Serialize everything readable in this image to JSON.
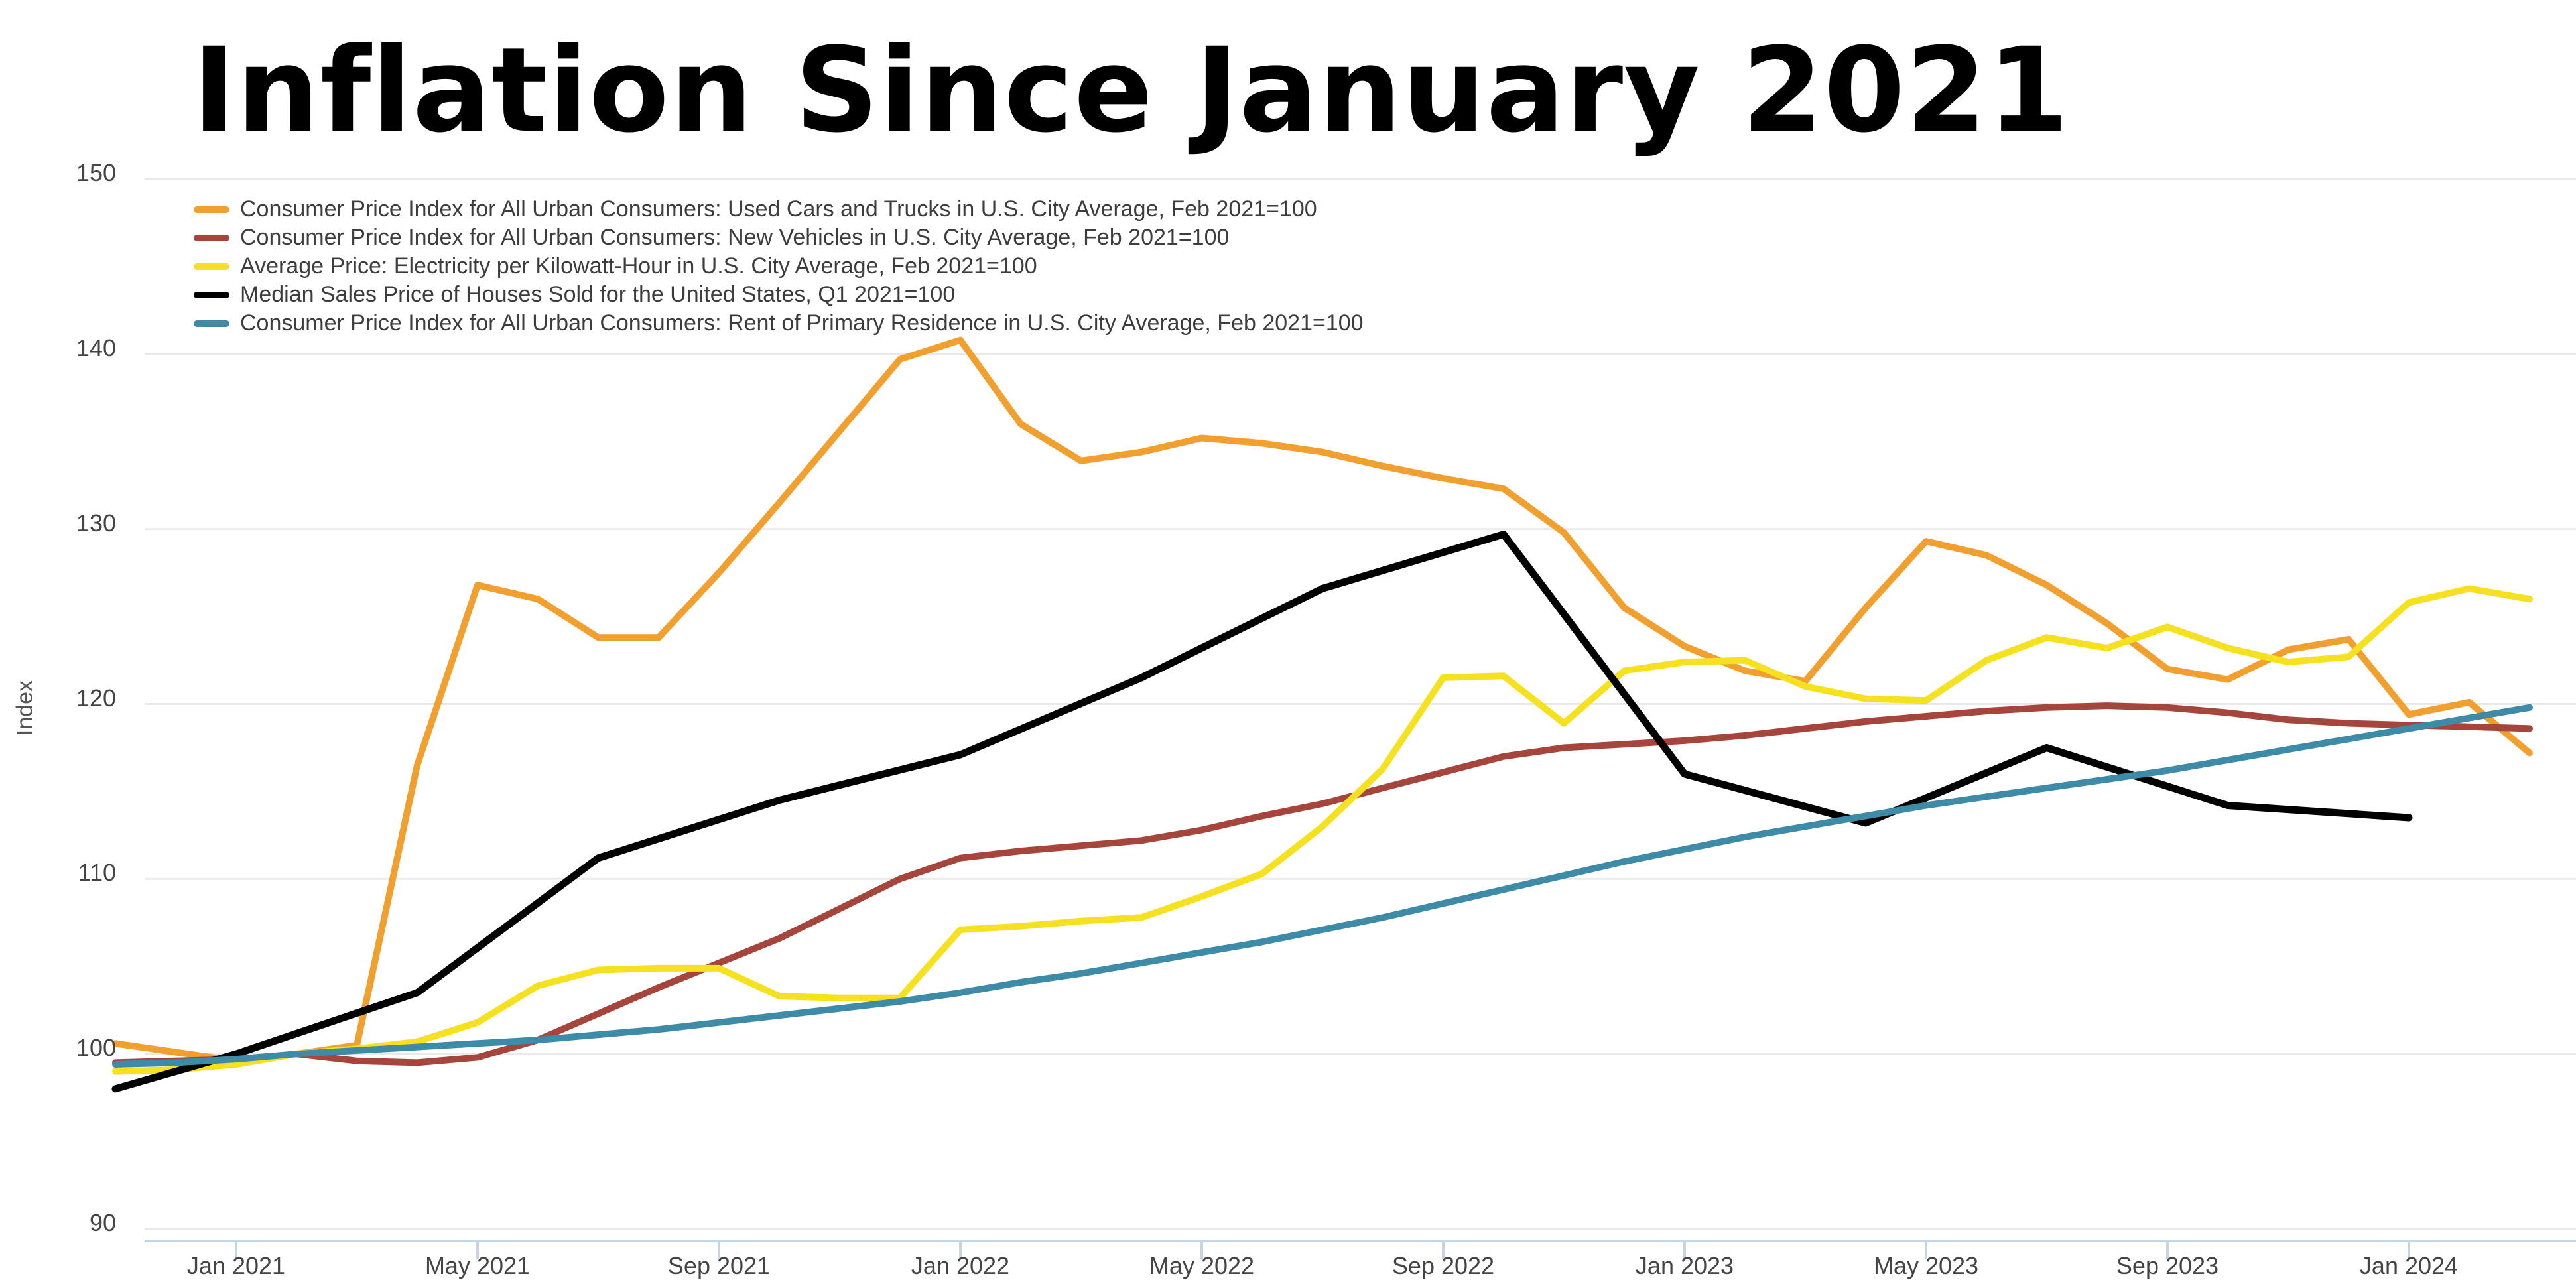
{
  "title": "Inflation Since January 2021",
  "y_axis": {
    "label": "Index",
    "ticks": [
      90,
      100,
      110,
      120,
      130,
      140,
      150
    ]
  },
  "x_axis": {
    "tick_labels": [
      "Jan 2021",
      "May 2021",
      "Sep 2021",
      "Jan 2022",
      "May 2022",
      "Sep 2022",
      "Jan 2023",
      "May 2023",
      "Sep 2023",
      "Jan 2024"
    ]
  },
  "colors": {
    "used_cars": "#F1A02F",
    "new_vehicles": "#A6453C",
    "electricity": "#F6E120",
    "houses": "#000000",
    "rent": "#3D8BA6",
    "gridline": "#E9E9E9",
    "axis_line": "#C5D5E6",
    "tick_text": "#444444",
    "legend_text": "#3D3D3D"
  },
  "legend": [
    {
      "label": "Consumer Price Index for All Urban Consumers: Used Cars and Trucks in U.S. City Average, Feb 2021=100",
      "series": "used_cars"
    },
    {
      "label": "Consumer Price Index for All Urban Consumers: New Vehicles in U.S. City Average, Feb 2021=100",
      "series": "new_vehicles"
    },
    {
      "label": "Average Price: Electricity per Kilowatt-Hour in U.S. City Average, Feb 2021=100",
      "series": "electricity"
    },
    {
      "label": "Median Sales Price of Houses Sold for the United States, Q1 2021=100",
      "series": "houses"
    },
    {
      "label": "Consumer Price Index for All Urban Consumers: Rent of Primary Residence in U.S. City Average, Feb 2021=100",
      "series": "rent"
    }
  ],
  "chart_data": {
    "type": "line",
    "title": "Inflation Since January 2021",
    "xlabel": "",
    "ylabel": "Index",
    "ylim": [
      90,
      150
    ],
    "grid": true,
    "legend_position": "top-left",
    "x": [
      "Nov 2020",
      "Dec 2020",
      "Jan 2021",
      "Feb 2021",
      "Mar 2021",
      "Apr 2021",
      "May 2021",
      "Jun 2021",
      "Jul 2021",
      "Aug 2021",
      "Sep 2021",
      "Oct 2021",
      "Nov 2021",
      "Dec 2021",
      "Jan 2022",
      "Feb 2022",
      "Mar 2022",
      "Apr 2022",
      "May 2022",
      "Jun 2022",
      "Jul 2022",
      "Aug 2022",
      "Sep 2022",
      "Oct 2022",
      "Nov 2022",
      "Dec 2022",
      "Jan 2023",
      "Feb 2023",
      "Mar 2023",
      "Apr 2023",
      "May 2023",
      "Jun 2023",
      "Jul 2023",
      "Aug 2023",
      "Sep 2023",
      "Oct 2023",
      "Nov 2023",
      "Dec 2023",
      "Jan 2024",
      "Feb 2024",
      "Mar 2024"
    ],
    "series": [
      {
        "name": "CPI Used Cars and Trucks, Feb 2021=100",
        "key": "used_cars",
        "frequency": "monthly",
        "values": [
          100.6,
          100.1,
          99.6,
          100.0,
          100.5,
          116.5,
          126.8,
          126.0,
          123.8,
          123.8,
          127.5,
          131.5,
          135.6,
          139.7,
          140.8,
          136.0,
          133.9,
          134.4,
          135.2,
          134.9,
          134.4,
          133.6,
          132.9,
          132.3,
          129.8,
          125.5,
          123.3,
          121.9,
          121.3,
          125.5,
          129.3,
          128.5,
          126.8,
          124.6,
          122.0,
          121.4,
          123.1,
          123.7,
          119.4,
          120.1,
          117.2
        ]
      },
      {
        "name": "CPI New Vehicles, Feb 2021=100",
        "key": "new_vehicles",
        "frequency": "monthly",
        "values": [
          99.5,
          99.6,
          99.7,
          100.0,
          99.6,
          99.5,
          99.8,
          100.8,
          102.3,
          103.8,
          105.2,
          106.6,
          108.3,
          110.0,
          111.2,
          111.6,
          111.9,
          112.2,
          112.8,
          113.6,
          114.3,
          115.2,
          116.1,
          117.0,
          117.5,
          117.7,
          117.9,
          118.2,
          118.6,
          119.0,
          119.3,
          119.6,
          119.8,
          119.9,
          119.8,
          119.5,
          119.1,
          118.9,
          118.8,
          118.7,
          118.6
        ]
      },
      {
        "name": "Average Price: Electricity per kWh, Feb 2021=100",
        "key": "electricity",
        "frequency": "monthly",
        "values": [
          99.0,
          99.1,
          99.4,
          100.0,
          100.3,
          100.7,
          101.8,
          103.9,
          104.8,
          104.9,
          104.9,
          103.3,
          103.2,
          103.2,
          107.1,
          107.3,
          107.6,
          107.8,
          109.0,
          110.3,
          113.0,
          116.3,
          121.5,
          121.6,
          118.9,
          121.9,
          122.4,
          122.5,
          121.0,
          120.3,
          120.2,
          122.5,
          123.8,
          123.2,
          124.4,
          123.2,
          122.4,
          122.7,
          125.8,
          126.6,
          126.0
        ]
      },
      {
        "name": "Median Sales Price of Houses Sold, Q1 2021=100",
        "key": "houses",
        "frequency": "quarterly",
        "x_indices": [
          0,
          2,
          5,
          8,
          11,
          14,
          17,
          20,
          23,
          26,
          29,
          32,
          35,
          38
        ],
        "values": [
          98.0,
          100.0,
          103.5,
          111.2,
          114.5,
          117.1,
          121.5,
          126.6,
          129.7,
          116.0,
          113.2,
          117.5,
          114.2,
          113.5
        ]
      },
      {
        "name": "CPI Rent of Primary Residence, Feb 2021=100",
        "key": "rent",
        "frequency": "monthly",
        "values": [
          99.4,
          99.5,
          99.7,
          100.0,
          100.2,
          100.4,
          100.6,
          100.8,
          101.1,
          101.4,
          101.8,
          102.2,
          102.6,
          103.0,
          103.5,
          104.1,
          104.6,
          105.2,
          105.8,
          106.4,
          107.1,
          107.8,
          108.6,
          109.4,
          110.2,
          111.0,
          111.7,
          112.4,
          113.0,
          113.6,
          114.2,
          114.7,
          115.2,
          115.7,
          116.2,
          116.8,
          117.4,
          118.0,
          118.6,
          119.2,
          119.8
        ]
      }
    ]
  }
}
